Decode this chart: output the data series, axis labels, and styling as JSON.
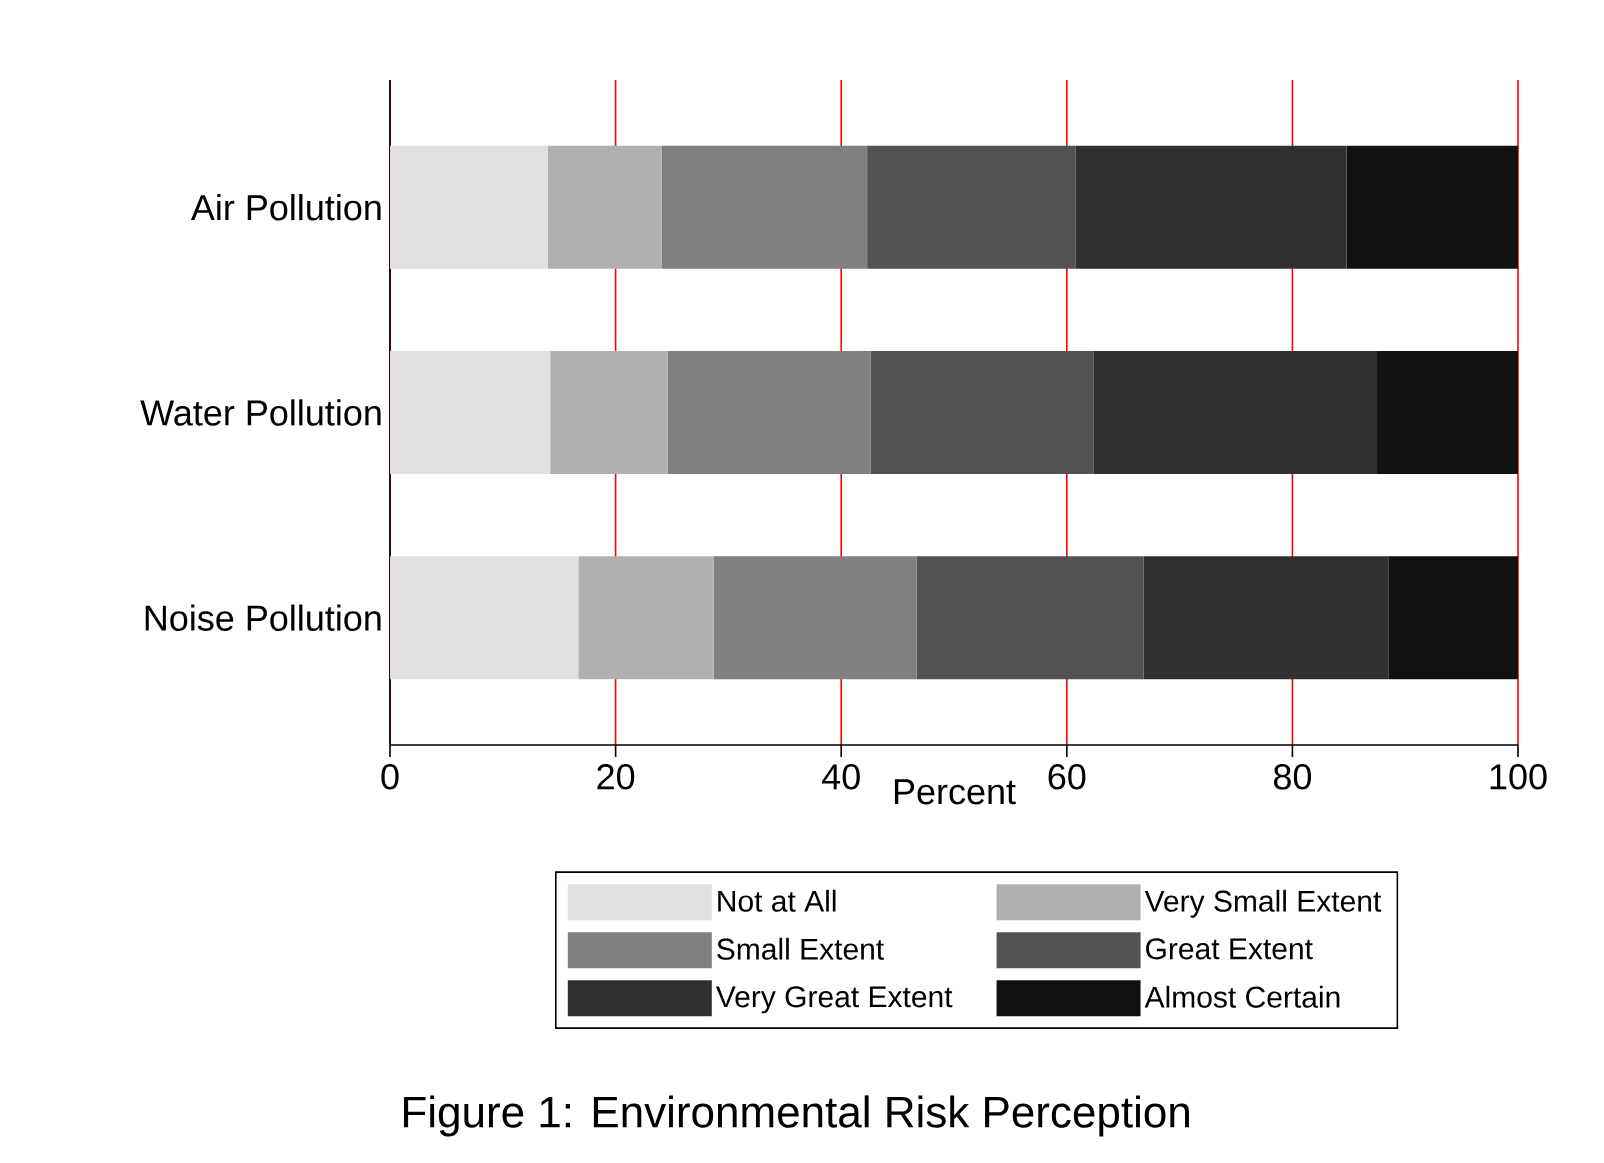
{
  "chart_data": {
    "type": "bar",
    "orientation": "horizontal",
    "stacked": true,
    "title": "Figure 1: Environmental Risk Perception",
    "xlabel": "Percent",
    "categories": [
      "Air Pollution",
      "Water Pollution",
      "Noise Pollution"
    ],
    "series": [
      {
        "name": "Not at All",
        "color": "#e0e0e0",
        "values": [
          14.0,
          14.2,
          16.7
        ]
      },
      {
        "name": "Very Small Extent",
        "color": "#b0b0b0",
        "values": [
          10.1,
          10.4,
          12.0
        ]
      },
      {
        "name": "Small Extent",
        "color": "#808080",
        "values": [
          18.2,
          18.0,
          18.0
        ]
      },
      {
        "name": "Great Extent",
        "color": "#525252",
        "values": [
          18.5,
          19.8,
          20.1
        ]
      },
      {
        "name": "Very Great Extent",
        "color": "#303030",
        "values": [
          24.0,
          25.1,
          21.7
        ]
      },
      {
        "name": "Almost Certain",
        "color": "#111111",
        "values": [
          15.2,
          12.5,
          11.5
        ]
      }
    ],
    "xlim": [
      0,
      100
    ],
    "xticks": [
      0,
      20,
      40,
      60,
      80,
      100
    ],
    "grid": "x",
    "legend": "bottom"
  }
}
